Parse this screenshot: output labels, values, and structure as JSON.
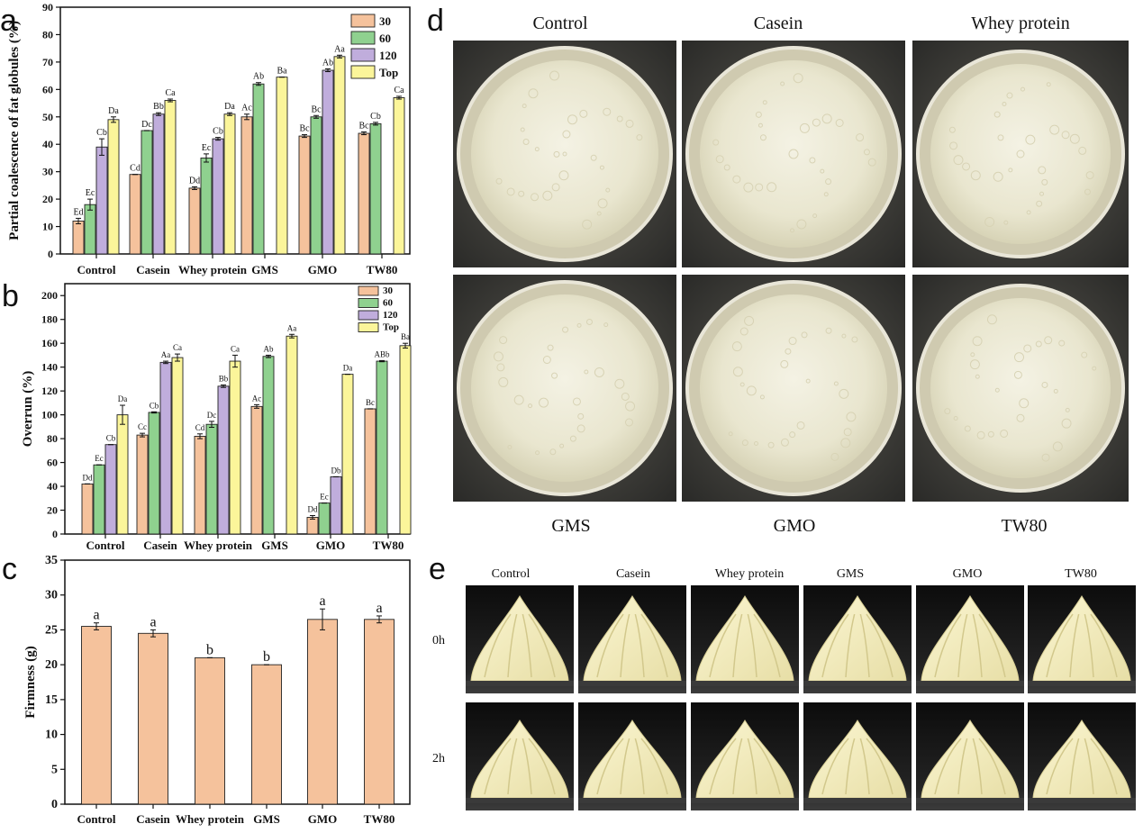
{
  "panel_letters": {
    "a": "a",
    "b": "b",
    "c": "c",
    "d": "d",
    "e": "e"
  },
  "colors": {
    "s30": "#f5c29c",
    "s60": "#8fd18f",
    "s120": "#c0addc",
    "top": "#fbf59a",
    "firmness": "#f5c29c",
    "axis": "#111111"
  },
  "chart_data": [
    {
      "id": "a",
      "type": "bar",
      "categories": [
        "Control",
        "Casein",
        "Whey protein",
        "GMS",
        "GMO",
        "TW80"
      ],
      "ylabel": "Partial coalescence of fat globules (%)",
      "ylim": [
        0,
        90
      ],
      "yticks": [
        0,
        10,
        20,
        30,
        40,
        50,
        60,
        70,
        80,
        90
      ],
      "legend_position": "top-right",
      "series": [
        {
          "name": "30",
          "color_key": "s30",
          "values": [
            12,
            29,
            24,
            50,
            43,
            44
          ],
          "errors": [
            1,
            0,
            0.5,
            1,
            0.5,
            0.5
          ],
          "labels": [
            "Ed",
            "Cd",
            "Dd",
            "Ac",
            "Bc",
            "Bc"
          ]
        },
        {
          "name": "60",
          "color_key": "s60",
          "values": [
            18,
            45,
            35,
            62,
            50,
            47.5
          ],
          "errors": [
            2,
            0,
            1.5,
            0.5,
            0.5,
            0.5
          ],
          "labels": [
            "Ec",
            "Dc",
            "Ec",
            "Ab",
            "Bc",
            "Cb"
          ]
        },
        {
          "name": "120",
          "color_key": "s120",
          "values": [
            39,
            51,
            42,
            null,
            67,
            null
          ],
          "errors": [
            3,
            0.5,
            0.5,
            null,
            0.5,
            null
          ],
          "labels": [
            "Cb",
            "Bb",
            "Cb",
            "",
            "Ab",
            ""
          ]
        },
        {
          "name": "Top",
          "color_key": "top",
          "values": [
            49,
            56,
            51,
            64.5,
            72,
            57
          ],
          "errors": [
            1,
            0.5,
            0.5,
            0,
            0.5,
            0.5
          ],
          "labels": [
            "Da",
            "Ca",
            "Da",
            "Ba",
            "Aa",
            "Ca"
          ]
        }
      ]
    },
    {
      "id": "b",
      "type": "bar",
      "categories": [
        "Control",
        "Casein",
        "Whey protein",
        "GMS",
        "GMO",
        "TW80"
      ],
      "ylabel": "Overrun (%)",
      "ylim": [
        0,
        210
      ],
      "yticks": [
        0,
        20,
        40,
        60,
        80,
        100,
        120,
        140,
        160,
        180,
        200
      ],
      "legend_position": "top-right",
      "series": [
        {
          "name": "30",
          "color_key": "s30",
          "values": [
            42,
            83,
            82,
            107,
            14,
            105
          ],
          "errors": [
            0,
            1.5,
            2,
            1.5,
            1.5,
            0
          ],
          "labels": [
            "Dd",
            "Cc",
            "Cd",
            "Ac",
            "Dd",
            "Bc"
          ]
        },
        {
          "name": "60",
          "color_key": "s60",
          "values": [
            58,
            102,
            92,
            149,
            26,
            145
          ],
          "errors": [
            0,
            0.5,
            2.5,
            1,
            0,
            0.5
          ],
          "labels": [
            "Ec",
            "Cb",
            "Dc",
            "Ab",
            "Ec",
            "ABb"
          ]
        },
        {
          "name": "120",
          "color_key": "s120",
          "values": [
            75,
            144,
            124,
            null,
            48,
            null
          ],
          "errors": [
            0,
            1,
            1,
            null,
            0,
            null
          ],
          "labels": [
            "Cb",
            "Aa",
            "Bb",
            "",
            "Db",
            ""
          ]
        },
        {
          "name": "Top",
          "color_key": "top",
          "values": [
            100,
            148,
            145,
            166,
            134,
            158
          ],
          "errors": [
            8,
            3,
            5,
            1.5,
            0,
            2
          ],
          "labels": [
            "Da",
            "Ca",
            "Ca",
            "Aa",
            "Da",
            "Ba"
          ]
        }
      ]
    },
    {
      "id": "c",
      "type": "bar",
      "categories": [
        "Control",
        "Casein",
        "Whey protein",
        "GMS",
        "GMO",
        "TW80"
      ],
      "ylabel": "Firmness (g)",
      "ylim": [
        0,
        35
      ],
      "yticks": [
        0,
        5,
        10,
        15,
        20,
        25,
        30,
        35
      ],
      "series": [
        {
          "name": "",
          "color_key": "firmness",
          "values": [
            25.5,
            24.5,
            21,
            20,
            26.5,
            26.5
          ],
          "errors": [
            0.5,
            0.5,
            0,
            0,
            1.5,
            0.5
          ],
          "labels": [
            "a",
            "a",
            "b",
            "b",
            "a",
            "a"
          ]
        }
      ]
    }
  ],
  "photos_d": {
    "top_captions": [
      "Control",
      "Casein",
      "Whey protein"
    ],
    "bottom_captions": [
      "GMS",
      "GMO",
      "TW80"
    ]
  },
  "photos_e": {
    "captions": [
      "Control",
      "Casein",
      "Whey protein",
      "GMS",
      "GMO",
      "TW80"
    ],
    "rows": [
      "0h",
      "2h"
    ]
  }
}
